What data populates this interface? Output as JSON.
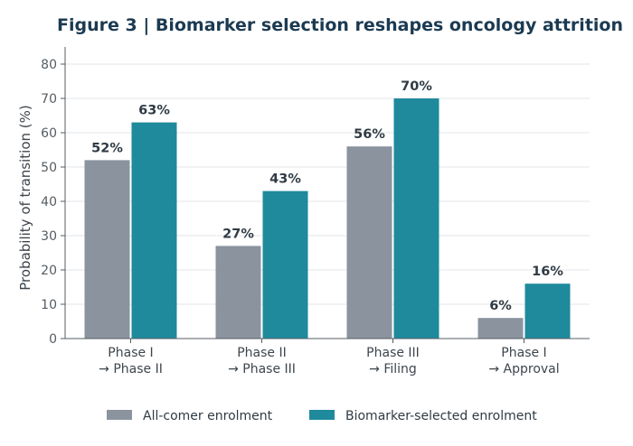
{
  "chart_data": {
    "type": "bar",
    "title": "Figure 3  |  Biomarker selection reshapes oncology attrition",
    "ylabel": "Probability of transition (%)",
    "xlabel": "",
    "ylim": [
      0,
      85
    ],
    "yticks": [
      0,
      10,
      20,
      30,
      40,
      50,
      60,
      70,
      80
    ],
    "grid": true,
    "legend_position": "bottom",
    "categories": [
      [
        "Phase I",
        "→ Phase II"
      ],
      [
        "Phase II",
        "→ Phase III"
      ],
      [
        "Phase III",
        "→ Filing"
      ],
      [
        "Phase I",
        "→ Approval"
      ]
    ],
    "series": [
      {
        "name": "All-comer enrolment",
        "color": "#8a939e",
        "values": [
          52,
          27,
          56,
          6
        ]
      },
      {
        "name": "Biomarker-selected enrolment",
        "color": "#1f8a9c",
        "values": [
          63,
          43,
          70,
          16
        ]
      }
    ],
    "value_suffix": "%"
  }
}
